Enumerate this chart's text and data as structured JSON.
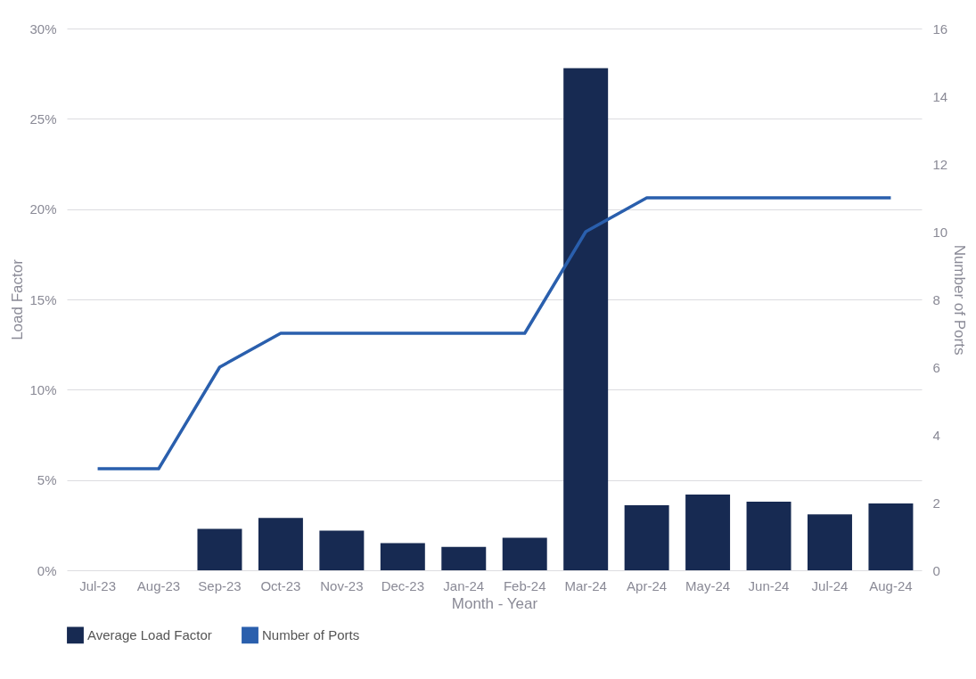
{
  "chart_data": {
    "type": "bar",
    "xlabel": "Month - Year",
    "ylabel": "Load Factor",
    "y2label": "Number of Ports",
    "categories": [
      "Jul-23",
      "Aug-23",
      "Sep-23",
      "Oct-23",
      "Nov-23",
      "Dec-23",
      "Jan-24",
      "Feb-24",
      "Mar-24",
      "Apr-24",
      "May-24",
      "Jun-24",
      "Jul-24",
      "Aug-24"
    ],
    "series": [
      {
        "name": "Average Load Factor",
        "color": "#172a52",
        "values": [
          null,
          null,
          2.3,
          2.9,
          2.2,
          1.5,
          1.3,
          1.8,
          27.8,
          3.6,
          4.2,
          3.8,
          3.1,
          3.7
        ]
      },
      {
        "name": "Number of Ports",
        "type": "line",
        "axis": "y2",
        "color": "#2a5fad",
        "values": [
          3,
          3,
          6,
          7,
          7,
          7,
          7,
          7,
          10,
          11,
          11,
          11,
          11,
          11
        ]
      }
    ],
    "ylim": [
      0,
      30
    ],
    "yticks": [
      {
        "value": 0,
        "label": "0%"
      },
      {
        "value": 5,
        "label": "5%"
      },
      {
        "value": 10,
        "label": "10%"
      },
      {
        "value": 15,
        "label": "15%"
      },
      {
        "value": 20,
        "label": "20%"
      },
      {
        "value": 25,
        "label": "25%"
      },
      {
        "value": 30,
        "label": "30%"
      }
    ],
    "y2lim": [
      0,
      16
    ],
    "y2ticks": [
      0,
      2,
      4,
      6,
      8,
      10,
      12,
      14,
      16
    ],
    "grid": "y",
    "legend": "bottom",
    "marker": "none",
    "line_style": "solid"
  }
}
